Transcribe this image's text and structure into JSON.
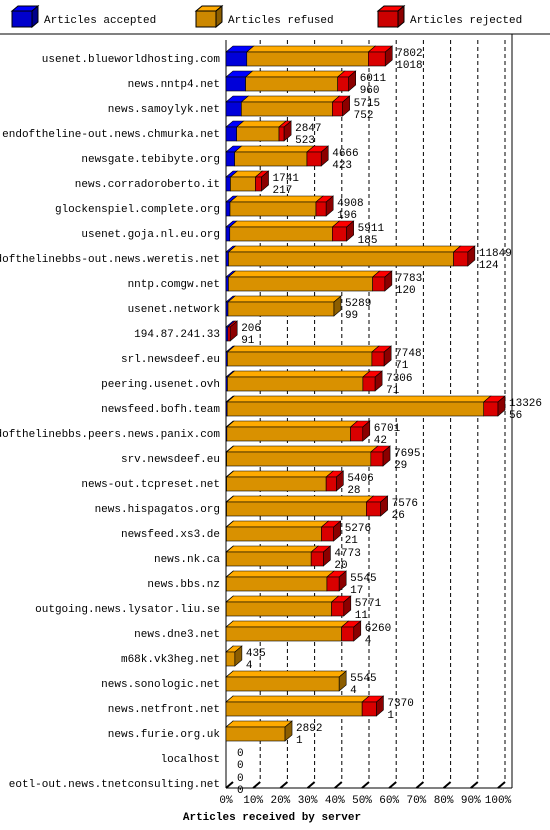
{
  "chart_data": {
    "type": "bar",
    "orientation": "horizontal",
    "stacked": true,
    "xlabel": "Articles received by server",
    "categories": [
      "usenet.blueworldhosting.com",
      "news.nntp4.net",
      "news.samoylyk.net",
      "endoftheline-out.news.chmurka.net",
      "newsgate.tebibyte.org",
      "news.corradoroberto.it",
      "glockenspiel.complete.org",
      "usenet.goja.nl.eu.org",
      "endofthelinebbs-out.news.weretis.net",
      "nntp.comgw.net",
      "usenet.network",
      "194.87.241.33",
      "srl.newsdeef.eu",
      "peering.usenet.ovh",
      "newsfeed.bofh.team",
      "endofthelinebbs.peers.news.panix.com",
      "srv.newsdeef.eu",
      "news-out.tcpreset.net",
      "news.hispagatos.org",
      "newsfeed.xs3.de",
      "news.nk.ca",
      "news.bbs.nz",
      "outgoing.news.lysator.liu.se",
      "news.dne3.net",
      "m68k.vk3heg.net",
      "news.sonologic.net",
      "news.netfront.net",
      "news.furie.org.uk",
      "localhost",
      "eotl-out.news.tnetconsulting.net"
    ],
    "totals": [
      7802,
      6011,
      5715,
      2847,
      4666,
      1741,
      4908,
      5911,
      11849,
      7783,
      5289,
      206,
      7748,
      7306,
      13326,
      6701,
      7695,
      5406,
      7576,
      5276,
      4773,
      5545,
      5771,
      6260,
      435,
      5545,
      7370,
      2892,
      0,
      0
    ],
    "series": [
      {
        "name": "Articles accepted",
        "color": "#0000ff",
        "values": [
          1018,
          960,
          752,
          523,
          423,
          217,
          196,
          185,
          124,
          120,
          99,
          91,
          71,
          71,
          56,
          42,
          29,
          28,
          26,
          21,
          20,
          17,
          11,
          4,
          4,
          4,
          1,
          1,
          0,
          0
        ]
      },
      {
        "name": "Articles refused",
        "color": "#ffaa00",
        "values": [
          5954,
          4511,
          4463,
          2074,
          3543,
          1224,
          4212,
          5026,
          11025,
          7063,
          5190,
          0,
          7077,
          6635,
          12570,
          6059,
          7066,
          4878,
          6850,
          4655,
          4153,
          4928,
          5160,
          5656,
          431,
          5541,
          6669,
          2891,
          0,
          0
        ]
      },
      {
        "name": "Articles rejected",
        "color": "#ff0000",
        "values": [
          830,
          540,
          500,
          250,
          700,
          300,
          500,
          700,
          700,
          600,
          0,
          115,
          600,
          600,
          700,
          600,
          600,
          500,
          700,
          600,
          600,
          600,
          600,
          600,
          0,
          0,
          700,
          0,
          0,
          0
        ]
      }
    ],
    "xlim": [
      0,
      13326
    ],
    "xticks": [
      {
        "value": 0,
        "label": "0%"
      },
      {
        "value": 1332.6,
        "label": "10%"
      },
      {
        "value": 2665.2,
        "label": "20%"
      },
      {
        "value": 3997.8,
        "label": "30%"
      },
      {
        "value": 5330.4,
        "label": "40%"
      },
      {
        "value": 6663,
        "label": "50%"
      },
      {
        "value": 7995.6,
        "label": "60%"
      },
      {
        "value": 9328.2,
        "label": "70%"
      },
      {
        "value": 10660.8,
        "label": "80%"
      },
      {
        "value": 11993.4,
        "label": "90%"
      },
      {
        "value": 13326,
        "label": "100%"
      }
    ],
    "grid": true,
    "legend": "top"
  }
}
